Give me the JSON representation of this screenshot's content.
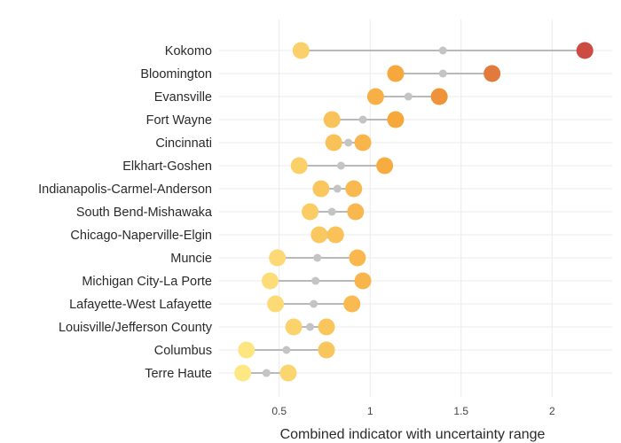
{
  "chart_data": {
    "type": "dumbbell",
    "title": "",
    "xlabel": "Combined indicator with uncertainty range",
    "ylabel": "",
    "xlim": [
      0.17,
      2.33
    ],
    "xticks": [
      0.5,
      1,
      1.5,
      2
    ],
    "xtick_labels": [
      "0.5",
      "1",
      "1.5",
      "2"
    ],
    "grid": true,
    "legend": "none",
    "color_scale": {
      "low": "#fde884",
      "mid": "#f6a337",
      "high": "#cc4b43"
    },
    "midpoint_color": "#c4c4c4",
    "line_color": "#b9b9b9",
    "categories": [
      "Kokomo",
      "Bloomington",
      "Evansville",
      "Fort Wayne",
      "Cincinnati",
      "Elkhart-Goshen",
      "Indianapolis-Carmel-Anderson",
      "South Bend-Mishawaka",
      "Chicago-Naperville-Elgin",
      "Muncie",
      "Michigan City-La Porte",
      "Lafayette-West Lafayette",
      "Louisville/Jefferson County",
      "Columbus",
      "Terre Haute"
    ],
    "low": [
      0.62,
      1.14,
      1.03,
      0.79,
      0.8,
      0.61,
      0.73,
      0.67,
      0.72,
      0.49,
      0.45,
      0.48,
      0.58,
      0.32,
      0.3
    ],
    "mid": [
      1.4,
      1.4,
      1.21,
      0.96,
      0.88,
      0.84,
      0.82,
      0.79,
      0.76,
      0.71,
      0.7,
      0.69,
      0.67,
      0.54,
      0.43
    ],
    "high": [
      2.18,
      1.67,
      1.38,
      1.14,
      0.96,
      1.08,
      0.91,
      0.92,
      0.81,
      0.93,
      0.96,
      0.9,
      0.76,
      0.76,
      0.55
    ]
  }
}
